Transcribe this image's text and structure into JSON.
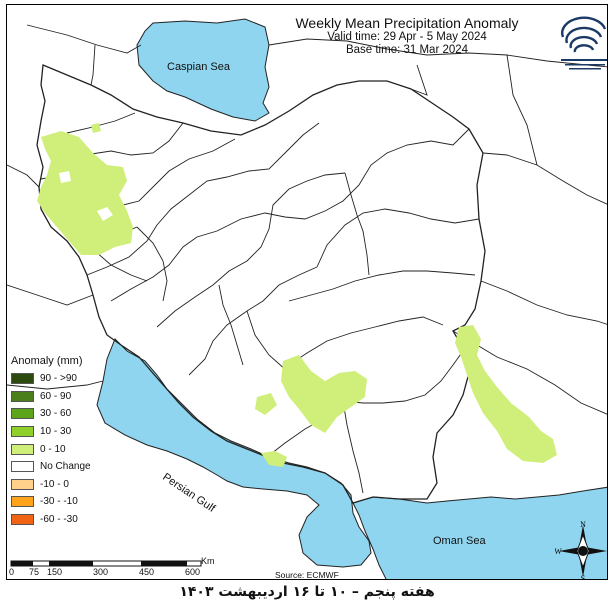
{
  "title": "Weekly Mean Precipitation Anomaly",
  "valid_time": "Valid time: 29 Apr - 5 May 2024",
  "base_time": "Base time: 31 Mar 2024",
  "legend": {
    "title": "Anomaly (mm)",
    "items": [
      {
        "label": "90 - >90",
        "color": "#2d4a0e"
      },
      {
        "label": "60 - 90",
        "color": "#4a7f1a"
      },
      {
        "label": "30 - 60",
        "color": "#5ca51a"
      },
      {
        "label": "10 - 30",
        "color": "#8fd12a"
      },
      {
        "label": "0 - 10",
        "color": "#cfef7a"
      },
      {
        "label": "No Change",
        "color": "#ffffff"
      },
      {
        "label": "-10 - 0",
        "color": "#ffd18a"
      },
      {
        "label": "-30 - -10",
        "color": "#ffa41a"
      },
      {
        "label": "-60 - -30",
        "color": "#f06414"
      }
    ]
  },
  "seas": {
    "caspian": "Caspian Sea",
    "persian_gulf": "Persian Gulf",
    "oman": "Oman Sea"
  },
  "scale": {
    "ticks": [
      "0",
      "75",
      "150",
      "300",
      "450",
      "600"
    ],
    "unit": "Km"
  },
  "source": "Source: ECMWF",
  "compass": {
    "n": "N",
    "s": "S",
    "e": "E",
    "w": "W"
  },
  "footer": "هفته پنجم – ۱۰ تا ۱۶ اردیبهشت ۱۴۰۳",
  "colors": {
    "water": "#8fd5ef",
    "anomaly_0_10": "#cfef7a",
    "border": "#222222"
  }
}
